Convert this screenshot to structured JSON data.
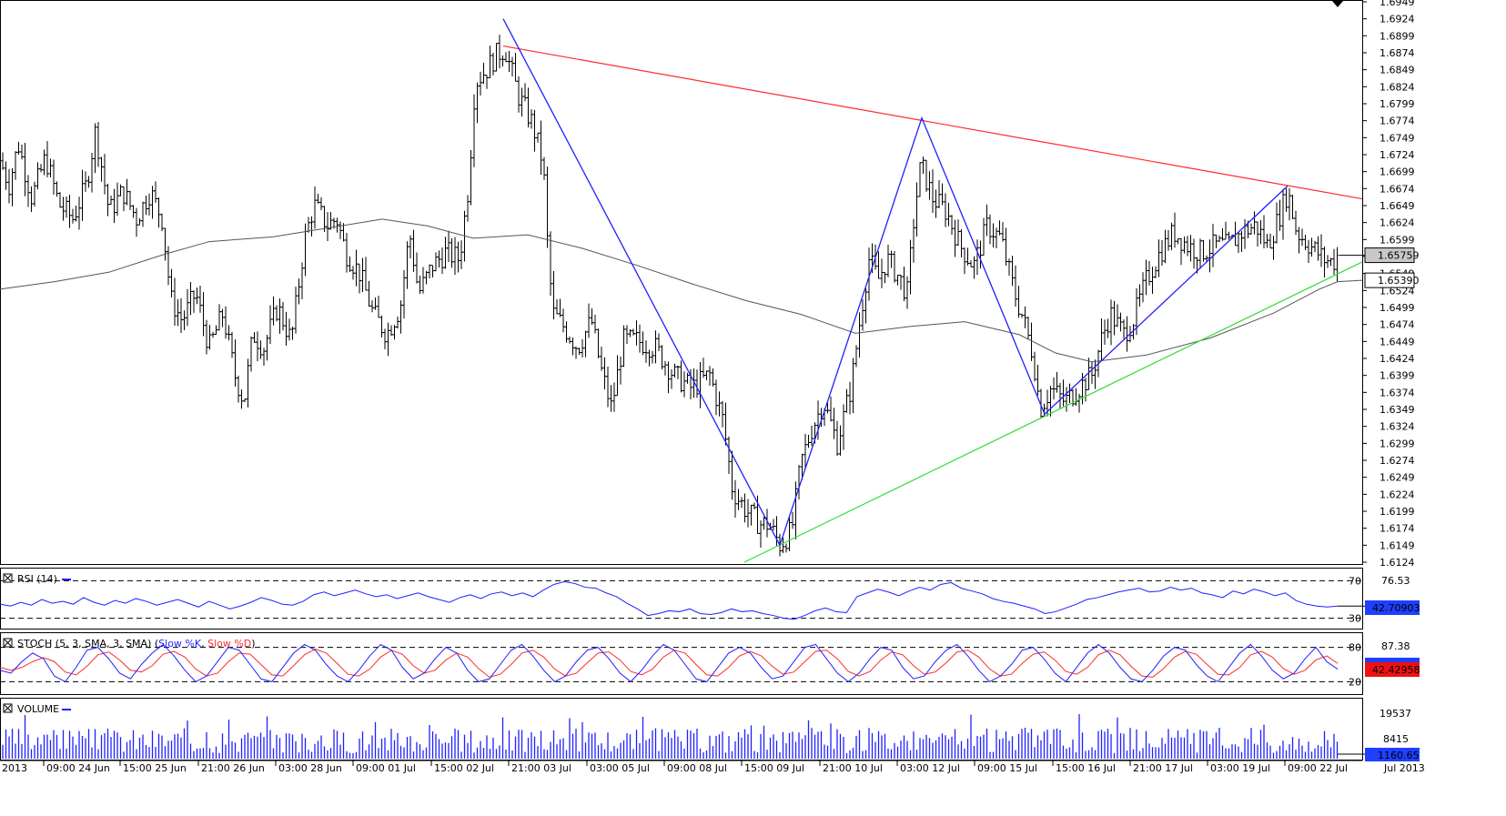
{
  "chart_data": [
    {
      "panel": "price",
      "type": "bar",
      "ylim": [
        1.6124,
        1.6949
      ],
      "ytick_labels": [
        "1.6949",
        "1.6924",
        "1.6899",
        "1.6874",
        "1.6849",
        "1.6824",
        "1.6799",
        "1.6774",
        "1.6749",
        "1.6724",
        "1.6699",
        "1.6674",
        "1.6649",
        "1.6624",
        "1.6599",
        "1.6574",
        "1.6549",
        "1.6524",
        "1.6499",
        "1.6474",
        "1.6449",
        "1.6424",
        "1.6399",
        "1.6374",
        "1.6349",
        "1.6324",
        "1.6299",
        "1.6274",
        "1.6249",
        "1.6224",
        "1.6199",
        "1.6174",
        "1.6149",
        "1.6124"
      ],
      "time_axis_labels": [
        "2013",
        "09:00 24 Jun",
        "15:00 25 Jun",
        "21:00 26 Jun",
        "03:00 28 Jun",
        "09:00 01 Jul",
        "15:00 02 Jul",
        "21:00 03 Jul",
        "03:00 05 Jul",
        "09:00 08 Jul",
        "15:00 09 Jul",
        "21:00 10 Jul",
        "03:00 12 Jul",
        "09:00 15 Jul",
        "15:00 16 Jul",
        "21:00 17 Jul",
        "03:00 19 Jul",
        "09:00 22 Jul",
        "Jul 2013"
      ],
      "price_path": [
        [
          0,
          1.6715
        ],
        [
          10,
          1.668
        ],
        [
          20,
          1.674
        ],
        [
          35,
          1.666
        ],
        [
          50,
          1.672
        ],
        [
          65,
          1.665
        ],
        [
          80,
          1.663
        ],
        [
          95,
          1.668
        ],
        [
          105,
          1.676
        ],
        [
          120,
          1.664
        ],
        [
          135,
          1.667
        ],
        [
          150,
          1.663
        ],
        [
          165,
          1.667
        ],
        [
          178,
          1.663
        ],
        [
          188,
          1.651
        ],
        [
          200,
          1.648
        ],
        [
          215,
          1.652
        ],
        [
          230,
          1.644
        ],
        [
          245,
          1.649
        ],
        [
          258,
          1.64
        ],
        [
          268,
          1.636
        ],
        [
          278,
          1.646
        ],
        [
          290,
          1.644
        ],
        [
          305,
          1.65
        ],
        [
          320,
          1.645
        ],
        [
          335,
          1.66
        ],
        [
          345,
          1.665
        ],
        [
          360,
          1.662
        ],
        [
          370,
          1.663
        ],
        [
          380,
          1.658
        ],
        [
          395,
          1.655
        ],
        [
          410,
          1.649
        ],
        [
          425,
          1.646
        ],
        [
          440,
          1.65
        ],
        [
          450,
          1.661
        ],
        [
          460,
          1.652
        ],
        [
          475,
          1.656
        ],
        [
          490,
          1.658
        ],
        [
          505,
          1.657
        ],
        [
          515,
          1.668
        ],
        [
          522,
          1.683
        ],
        [
          535,
          1.685
        ],
        [
          545,
          1.687
        ],
        [
          555,
          1.688
        ],
        [
          570,
          1.681
        ],
        [
          585,
          1.677
        ],
        [
          597,
          1.671
        ],
        [
          603,
          1.656
        ],
        [
          608,
          1.649
        ],
        [
          620,
          1.647
        ],
        [
          635,
          1.644
        ],
        [
          650,
          1.648
        ],
        [
          660,
          1.641
        ],
        [
          672,
          1.635
        ],
        [
          685,
          1.645
        ],
        [
          700,
          1.645
        ],
        [
          720,
          1.644
        ],
        [
          740,
          1.64
        ],
        [
          760,
          1.638
        ],
        [
          780,
          1.64
        ],
        [
          795,
          1.633
        ],
        [
          805,
          1.623
        ],
        [
          820,
          1.62
        ],
        [
          835,
          1.618
        ],
        [
          845,
          1.618
        ],
        [
          857,
          1.615
        ],
        [
          870,
          1.617
        ],
        [
          880,
          1.627
        ],
        [
          892,
          1.632
        ],
        [
          905,
          1.636
        ],
        [
          920,
          1.63
        ],
        [
          935,
          1.638
        ],
        [
          945,
          1.648
        ],
        [
          955,
          1.657
        ],
        [
          965,
          1.654
        ],
        [
          975,
          1.657
        ],
        [
          985,
          1.655
        ],
        [
          997,
          1.652
        ],
        [
          1005,
          1.664
        ],
        [
          1012,
          1.671
        ],
        [
          1025,
          1.666
        ],
        [
          1040,
          1.664
        ],
        [
          1055,
          1.659
        ],
        [
          1070,
          1.656
        ],
        [
          1085,
          1.662
        ],
        [
          1100,
          1.66
        ],
        [
          1115,
          1.652
        ],
        [
          1125,
          1.648
        ],
        [
          1135,
          1.643
        ],
        [
          1143,
          1.635
        ],
        [
          1155,
          1.638
        ],
        [
          1170,
          1.636
        ],
        [
          1185,
          1.638
        ],
        [
          1200,
          1.64
        ],
        [
          1210,
          1.645
        ],
        [
          1220,
          1.649
        ],
        [
          1235,
          1.646
        ],
        [
          1245,
          1.648
        ],
        [
          1260,
          1.654
        ],
        [
          1275,
          1.658
        ],
        [
          1290,
          1.661
        ],
        [
          1305,
          1.659
        ],
        [
          1320,
          1.658
        ],
        [
          1335,
          1.659
        ],
        [
          1350,
          1.659
        ],
        [
          1365,
          1.661
        ],
        [
          1380,
          1.662
        ],
        [
          1393,
          1.659
        ],
        [
          1405,
          1.663
        ],
        [
          1415,
          1.667
        ],
        [
          1425,
          1.661
        ],
        [
          1440,
          1.659
        ],
        [
          1455,
          1.657
        ],
        [
          1465,
          1.6565
        ],
        [
          1470,
          1.6576
        ]
      ],
      "moving_average": [
        [
          0,
          1.6526
        ],
        [
          60,
          1.6537
        ],
        [
          120,
          1.6551
        ],
        [
          180,
          1.6577
        ],
        [
          230,
          1.6596
        ],
        [
          300,
          1.6603
        ],
        [
          360,
          1.6616
        ],
        [
          420,
          1.6629
        ],
        [
          470,
          1.6619
        ],
        [
          520,
          1.6601
        ],
        [
          580,
          1.6606
        ],
        [
          640,
          1.6586
        ],
        [
          700,
          1.6561
        ],
        [
          760,
          1.6534
        ],
        [
          820,
          1.6509
        ],
        [
          880,
          1.6489
        ],
        [
          940,
          1.6461
        ],
        [
          1000,
          1.6471
        ],
        [
          1060,
          1.6478
        ],
        [
          1120,
          1.6459
        ],
        [
          1160,
          1.6432
        ],
        [
          1200,
          1.6419
        ],
        [
          1260,
          1.6429
        ],
        [
          1330,
          1.6454
        ],
        [
          1400,
          1.6491
        ],
        [
          1450,
          1.6526
        ],
        [
          1470,
          1.6537
        ],
        [
          1497,
          1.6539
        ]
      ],
      "zigzag": [
        [
          553,
          1.6924
        ],
        [
          857,
          1.6149
        ],
        [
          1013,
          1.6778
        ],
        [
          1148,
          1.6342
        ],
        [
          1415,
          1.6678
        ]
      ],
      "resistance_line": {
        "from": [
          553,
          1.6884
        ],
        "to": [
          1497,
          1.6659
        ]
      },
      "support_line": {
        "from": [
          818,
          1.6124
        ],
        "to": [
          1497,
          1.6566
        ]
      },
      "last_price": "1.65759",
      "ma_value": "1.65390",
      "colors": {
        "bars": "#000000",
        "zigzag": "#1f1fff",
        "resistance": "#ff2a2a",
        "support": "#33dd33",
        "ma": "#555555",
        "last_box": "#c8c8c8"
      }
    },
    {
      "panel": "rsi",
      "type": "line",
      "title": "RSI (14)",
      "ylim": [
        20,
        80
      ],
      "levels": [
        "70",
        "30"
      ],
      "right_labels": [
        "76.53"
      ],
      "current_value": "42.70903",
      "values": [
        45,
        43,
        47,
        44,
        50,
        46,
        48,
        45,
        52,
        47,
        44,
        49,
        46,
        51,
        48,
        44,
        47,
        50,
        46,
        42,
        48,
        44,
        40,
        43,
        47,
        52,
        49,
        45,
        44,
        48,
        55,
        58,
        54,
        57,
        60,
        56,
        53,
        55,
        51,
        54,
        57,
        53,
        50,
        47,
        52,
        55,
        51,
        56,
        58,
        54,
        57,
        53,
        60,
        66,
        69,
        67,
        63,
        62,
        57,
        53,
        46,
        40,
        33,
        35,
        38,
        37,
        40,
        35,
        34,
        36,
        40,
        37,
        38,
        35,
        33,
        30,
        29,
        33,
        38,
        41,
        37,
        36,
        53,
        57,
        61,
        58,
        54,
        59,
        63,
        60,
        66,
        68,
        62,
        59,
        56,
        51,
        48,
        46,
        43,
        40,
        35,
        37,
        41,
        45,
        50,
        52,
        55,
        58,
        60,
        62,
        58,
        59,
        63,
        60,
        62,
        57,
        55,
        52,
        59,
        56,
        61,
        58,
        54,
        57,
        49,
        45,
        43,
        42,
        43
      ]
    },
    {
      "panel": "stoch",
      "type": "line",
      "title": "STOCH (5, 3, SMA, 3, SMA)",
      "legend": [
        "Slow %K",
        "Slow %D"
      ],
      "ylim": [
        0,
        100
      ],
      "levels": [
        "80",
        "20"
      ],
      "right_labels": [
        "87.38"
      ],
      "current_value": "42.42958",
      "k": [
        40,
        35,
        55,
        70,
        60,
        30,
        20,
        45,
        75,
        80,
        60,
        35,
        25,
        50,
        70,
        85,
        65,
        40,
        20,
        30,
        55,
        80,
        75,
        50,
        25,
        20,
        45,
        70,
        85,
        75,
        50,
        30,
        20,
        40,
        65,
        85,
        75,
        45,
        25,
        35,
        60,
        80,
        70,
        40,
        20,
        25,
        50,
        75,
        85,
        65,
        40,
        20,
        30,
        55,
        75,
        80,
        60,
        35,
        20,
        40,
        65,
        85,
        75,
        50,
        25,
        20,
        45,
        70,
        80,
        70,
        45,
        25,
        30,
        55,
        80,
        85,
        60,
        35,
        20,
        35,
        60,
        80,
        75,
        45,
        25,
        30,
        55,
        75,
        85,
        65,
        40,
        20,
        30,
        50,
        75,
        80,
        60,
        35,
        20,
        45,
        70,
        85,
        70,
        45,
        25,
        20,
        40,
        65,
        80,
        75,
        50,
        30,
        20,
        45,
        70,
        85,
        65,
        40,
        25,
        35,
        60,
        80,
        55,
        42
      ],
      "d": [
        45,
        40,
        45,
        55,
        62,
        55,
        37,
        32,
        47,
        67,
        72,
        58,
        40,
        37,
        48,
        68,
        73,
        63,
        42,
        30,
        35,
        55,
        70,
        68,
        50,
        32,
        30,
        48,
        67,
        77,
        70,
        52,
        33,
        30,
        42,
        63,
        75,
        68,
        48,
        35,
        40,
        58,
        70,
        63,
        43,
        28,
        33,
        50,
        70,
        75,
        63,
        42,
        30,
        35,
        53,
        70,
        72,
        58,
        38,
        32,
        42,
        63,
        75,
        70,
        50,
        32,
        30,
        45,
        65,
        73,
        65,
        47,
        33,
        37,
        55,
        73,
        75,
        60,
        38,
        30,
        38,
        58,
        72,
        67,
        48,
        33,
        37,
        53,
        72,
        75,
        63,
        42,
        30,
        33,
        52,
        68,
        72,
        58,
        38,
        33,
        45,
        67,
        75,
        67,
        47,
        30,
        28,
        43,
        63,
        73,
        68,
        50,
        33,
        32,
        45,
        67,
        73,
        63,
        43,
        33,
        40,
        58,
        65,
        52
      ]
    },
    {
      "panel": "volume",
      "type": "bar",
      "title": "VOLUME",
      "right_labels": [
        "19537",
        "8415"
      ],
      "current_value": "1160.65"
    }
  ]
}
